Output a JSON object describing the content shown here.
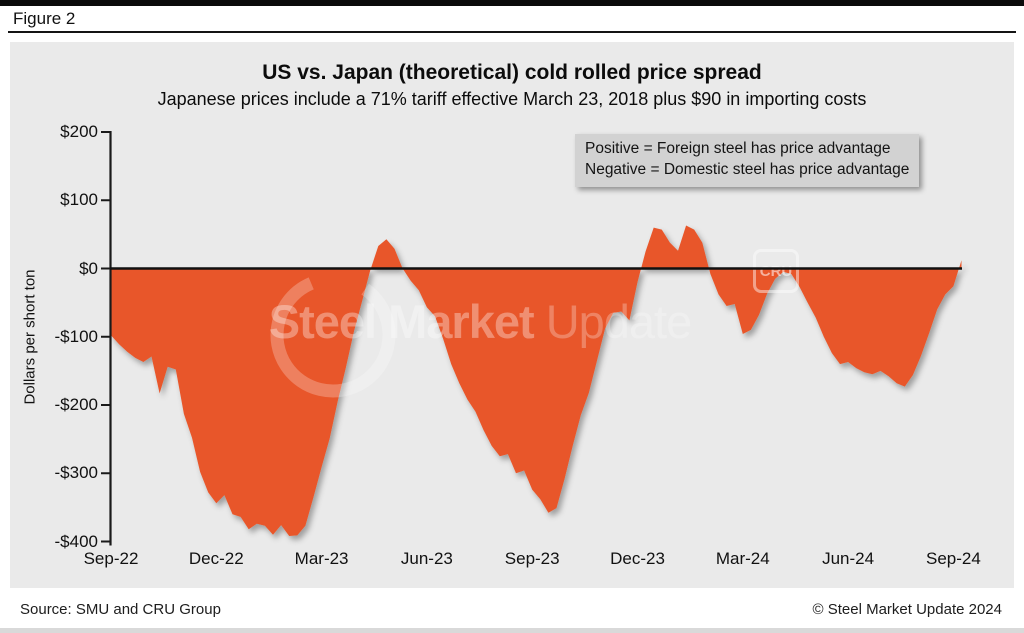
{
  "page": {
    "figure_label": "Figure 2",
    "footer_source": "Source: SMU and CRU Group",
    "footer_copyright": "© Steel Market Update 2024"
  },
  "legend": {
    "line1": "Positive = Foreign steel has price advantage",
    "line2": "Negative = Domestic steel has price advantage"
  },
  "watermark": {
    "bold_text": "Steel Market",
    "light_text": " Update",
    "badge": "CRU"
  },
  "colors": {
    "area": "#E8572A",
    "panel_bg": "#EAEAEA",
    "axis": "#1A1A1A",
    "zero_line": "#111111",
    "legend_bg": "#D2D2D2"
  },
  "chart_data": {
    "type": "area",
    "title": "US vs. Japan (theoretical) cold rolled price spread",
    "subtitle": "Japanese prices include a 71% tariff effective March 23, 2018 plus $90 in importing costs",
    "ylabel": "Dollars per short ton",
    "ylim": [
      -400,
      200
    ],
    "baseline": 0,
    "grid": false,
    "legend_position": "top-right",
    "x_unit": "weekly",
    "x_start": "Sep-22",
    "x_end": "Sep-24",
    "x_tick_labels": [
      "Sep-22",
      "Dec-22",
      "Mar-23",
      "Jun-23",
      "Sep-23",
      "Dec-23",
      "Mar-24",
      "Jun-24",
      "Sep-24"
    ],
    "x_tick_week_interval": 13,
    "y_tick_labels": [
      "$200",
      "$100",
      "$0",
      "-$100",
      "-$200",
      "-$300",
      "-$400"
    ],
    "y_tick_values": [
      200,
      100,
      0,
      -100,
      -200,
      -300,
      -400
    ],
    "series_name": "US vs. Japan cold rolled price spread ($/short ton)",
    "values": [
      -98,
      -111,
      -122,
      -131,
      -137,
      -129,
      -183,
      -144,
      -148,
      -213,
      -248,
      -298,
      -328,
      -344,
      -332,
      -360,
      -364,
      -382,
      -374,
      -377,
      -390,
      -376,
      -392,
      -391,
      -377,
      -335,
      -291,
      -249,
      -194,
      -145,
      -92,
      -48,
      -3,
      33,
      43,
      29,
      0,
      -18,
      -32,
      -57,
      -70,
      -103,
      -140,
      -168,
      -192,
      -210,
      -237,
      -260,
      -275,
      -272,
      -300,
      -296,
      -324,
      -338,
      -358,
      -351,
      -308,
      -260,
      -215,
      -182,
      -135,
      -88,
      -65,
      -63,
      -76,
      -20,
      25,
      60,
      57,
      38,
      26,
      63,
      57,
      38,
      -8,
      -38,
      -55,
      -52,
      -96,
      -90,
      -68,
      -37,
      -15,
      -5,
      -8,
      -27,
      -50,
      -72,
      -100,
      -124,
      -140,
      -137,
      -146,
      -152,
      -155,
      -150,
      -158,
      -168,
      -173,
      -156,
      -128,
      -95,
      -60,
      -38,
      -26,
      12
    ]
  }
}
